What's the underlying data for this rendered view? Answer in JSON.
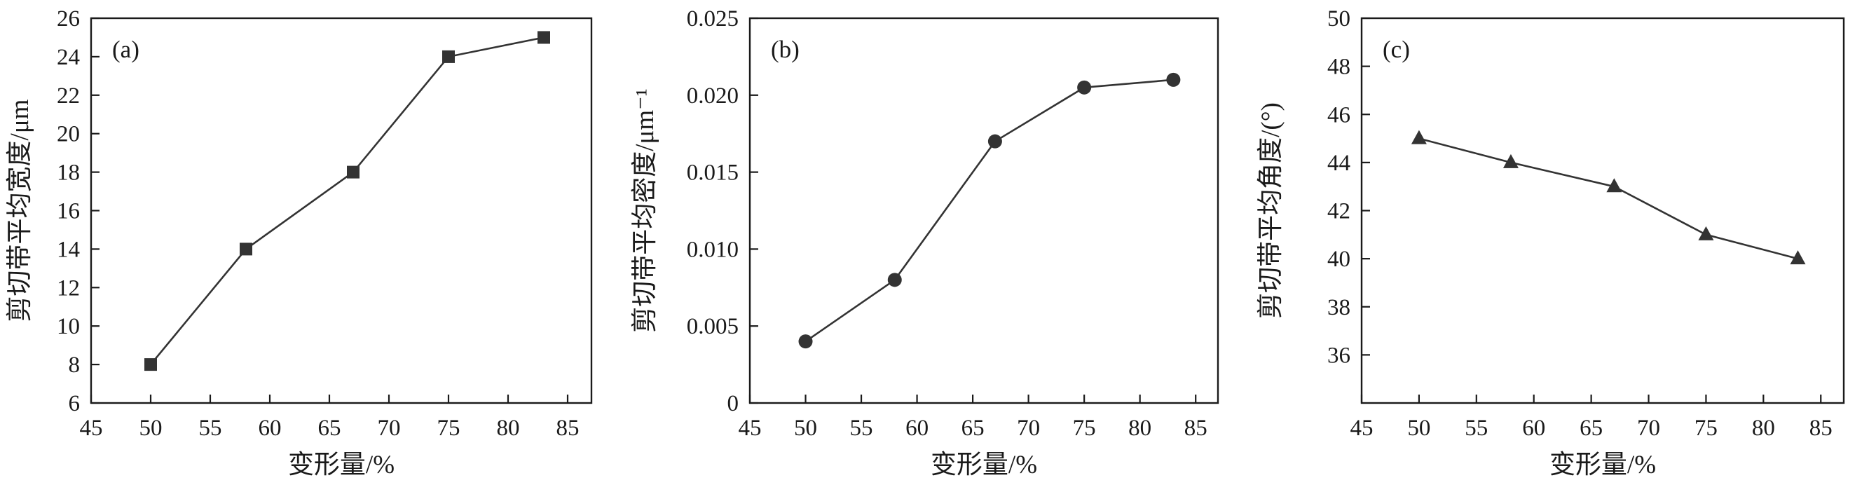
{
  "figure": {
    "background": "#ffffff",
    "axis_color": "#1a1a1a",
    "series_color": "#333333"
  },
  "chart_data": [
    {
      "type": "line",
      "panel_label": "(a)",
      "marker": "square",
      "x": [
        50,
        58,
        67,
        75,
        83
      ],
      "y": [
        8,
        14,
        18,
        24,
        25
      ],
      "xlabel": "变形量/%",
      "ylabel": "剪切带平均宽度/μm",
      "xlim": [
        45,
        87
      ],
      "ylim": [
        6,
        26
      ],
      "xticks": [
        45,
        50,
        55,
        60,
        65,
        70,
        75,
        80,
        85
      ],
      "xticklabels": [
        "45",
        "50",
        "55",
        "60",
        "65",
        "70",
        "75",
        "80",
        "85"
      ],
      "yticks": [
        6,
        8,
        10,
        12,
        14,
        16,
        18,
        20,
        22,
        24,
        26
      ],
      "yticklabels": [
        "6",
        "8",
        "10",
        "12",
        "14",
        "16",
        "18",
        "20",
        "22",
        "24",
        "26"
      ],
      "grid": false,
      "legend": null
    },
    {
      "type": "line",
      "panel_label": "(b)",
      "marker": "circle",
      "x": [
        50,
        58,
        67,
        75,
        83
      ],
      "y": [
        0.004,
        0.008,
        0.017,
        0.0205,
        0.021
      ],
      "xlabel": "变形量/%",
      "ylabel": "剪切带平均密度/μm⁻¹",
      "xlim": [
        45,
        87
      ],
      "ylim": [
        0,
        0.025
      ],
      "xticks": [
        45,
        50,
        55,
        60,
        65,
        70,
        75,
        80,
        85
      ],
      "xticklabels": [
        "45",
        "50",
        "55",
        "60",
        "65",
        "70",
        "75",
        "80",
        "85"
      ],
      "yticks": [
        0,
        0.005,
        0.01,
        0.015,
        0.02,
        0.025
      ],
      "yticklabels": [
        "0",
        "0.005",
        "0.010",
        "0.015",
        "0.020",
        "0.025"
      ],
      "grid": false,
      "legend": null
    },
    {
      "type": "line",
      "panel_label": "(c)",
      "marker": "triangle",
      "x": [
        50,
        58,
        67,
        75,
        83
      ],
      "y": [
        45,
        44,
        43,
        41,
        40
      ],
      "xlabel": "变形量/%",
      "ylabel": "剪切带平均角度/(°)",
      "xlim": [
        45,
        87
      ],
      "ylim": [
        34,
        50
      ],
      "xticks": [
        45,
        50,
        55,
        60,
        65,
        70,
        75,
        80,
        85
      ],
      "xticklabels": [
        "45",
        "50",
        "55",
        "60",
        "65",
        "70",
        "75",
        "80",
        "85"
      ],
      "yticks": [
        36,
        38,
        40,
        42,
        44,
        46,
        48,
        50
      ],
      "yticklabels": [
        "36",
        "38",
        "40",
        "42",
        "44",
        "46",
        "48",
        "50"
      ],
      "grid": false,
      "legend": null
    }
  ]
}
